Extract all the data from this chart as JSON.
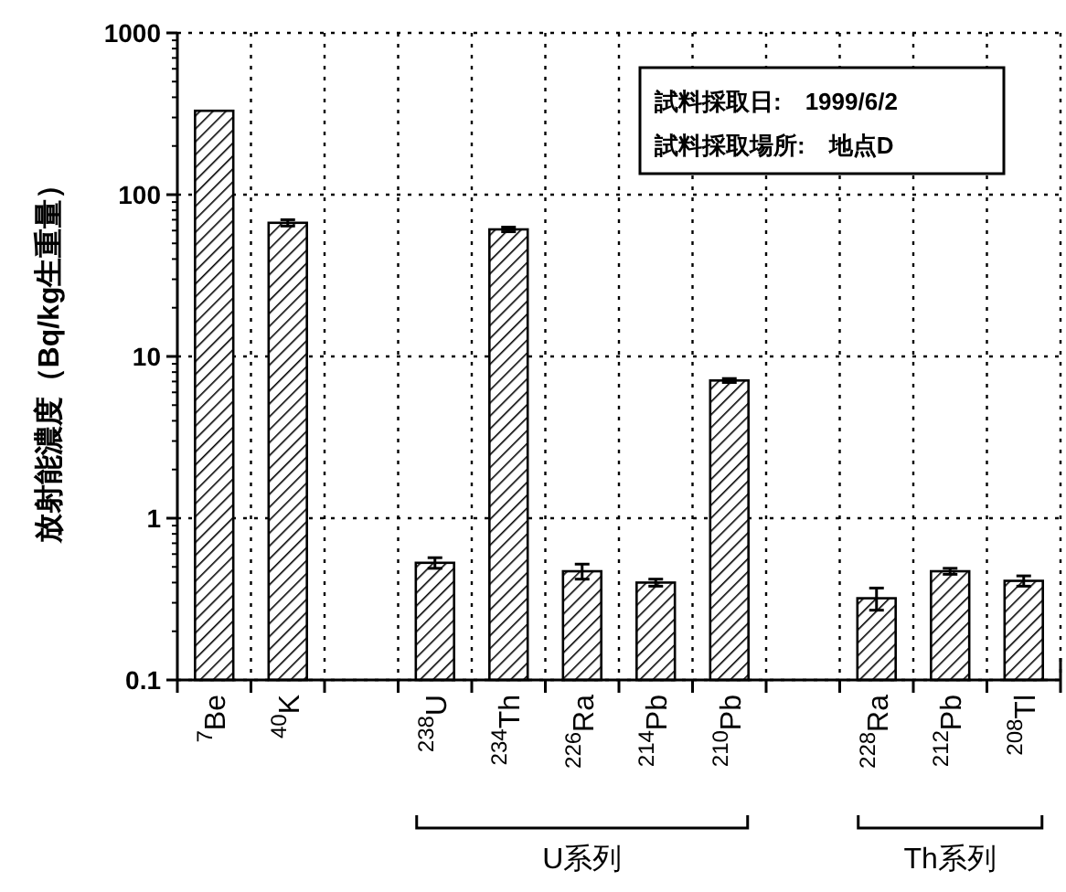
{
  "chart_data": {
    "type": "bar",
    "ylabel": "放射能濃度（Bq/kg生重量）",
    "categories": [
      "$^{7}$Be",
      "$^{40}$K",
      null,
      "$^{238}$U",
      "$^{234}$Th",
      "$^{226}$Ra",
      "$^{214}$Pb",
      "$^{210}$Pb",
      null,
      "$^{228}$Ra",
      "$^{212}$Pb",
      "$^{208}$Tl"
    ],
    "values": [
      330,
      67,
      null,
      0.53,
      61,
      0.47,
      0.4,
      7.1,
      null,
      0.32,
      0.47,
      0.41
    ],
    "errors": [
      null,
      3,
      null,
      0.04,
      2,
      0.05,
      0.02,
      0.2,
      null,
      0.05,
      0.02,
      0.03
    ],
    "color": "#000000",
    "log": true,
    "ylim": [
      0.1,
      1000
    ],
    "yticks": [
      0.1,
      1,
      10,
      100,
      1000
    ],
    "grid": true,
    "annotations": [
      "試料採取日:　1999/6/2",
      "試料採取場所:　地点D",
      "U系列",
      "Th系列"
    ]
  }
}
